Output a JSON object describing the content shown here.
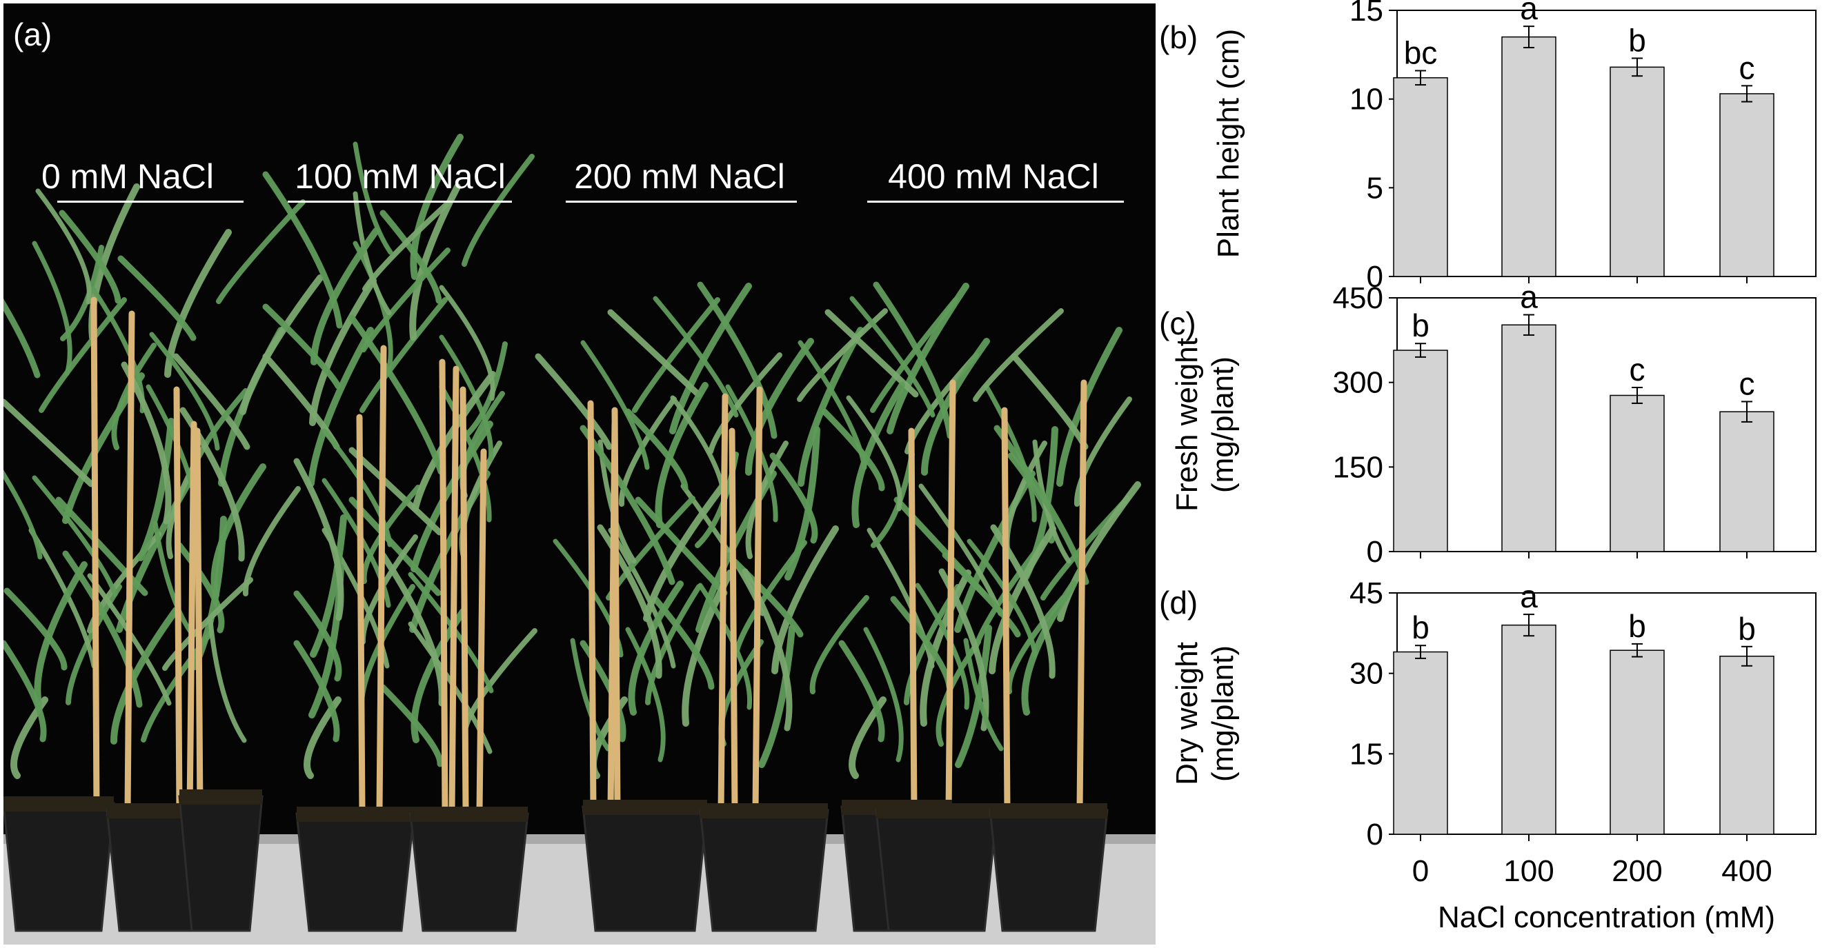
{
  "figure": {
    "panel_labels": [
      "(a)",
      "(b)",
      "(c)",
      "(d)"
    ],
    "treatments": [
      "0 mM NaCl",
      "100 mM NaCl",
      "200 mM NaCl",
      "400 mM NaCl"
    ],
    "colors": {
      "bar": "#d3d3d3",
      "photo_background": "#050505",
      "leaf": "#5f9b5a",
      "stake": "#d9b678",
      "pot": "#1b1b1b"
    }
  },
  "chart_data": [
    {
      "type": "bar",
      "panel": "(b)",
      "categories": [
        "0",
        "100",
        "200",
        "400"
      ],
      "values": [
        11.2,
        13.5,
        11.8,
        10.3
      ],
      "errors": [
        0.4,
        0.6,
        0.5,
        0.45
      ],
      "letters": [
        "bc",
        "a",
        "b",
        "c"
      ],
      "ylabel": "Plant height (cm)",
      "ylim": [
        0,
        15
      ],
      "yticks": [
        0,
        5,
        10,
        15
      ]
    },
    {
      "type": "bar",
      "panel": "(c)",
      "categories": [
        "0",
        "100",
        "200",
        "400"
      ],
      "values": [
        357,
        402,
        277,
        248
      ],
      "errors": [
        12,
        18,
        14,
        18
      ],
      "letters": [
        "b",
        "a",
        "c",
        "c"
      ],
      "ylabel": [
        "Fresh weight",
        "(mg/plant)"
      ],
      "ylim": [
        0,
        450
      ],
      "yticks": [
        0,
        150,
        300,
        450
      ]
    },
    {
      "type": "bar",
      "panel": "(d)",
      "categories": [
        "0",
        "100",
        "200",
        "400"
      ],
      "values": [
        34.0,
        39.0,
        34.3,
        33.2
      ],
      "errors": [
        1.2,
        2.0,
        1.2,
        1.8
      ],
      "letters": [
        "b",
        "a",
        "b",
        "b"
      ],
      "ylabel": [
        "Dry weight",
        "(mg/plant)"
      ],
      "ylim": [
        0,
        45
      ],
      "yticks": [
        0,
        15,
        30,
        45
      ],
      "xlabel": "NaCl concentration (mM)"
    }
  ]
}
